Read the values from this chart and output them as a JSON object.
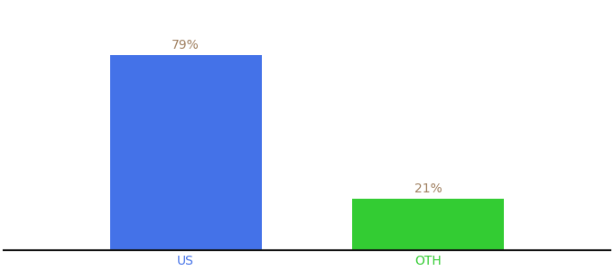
{
  "categories": [
    "US",
    "OTH"
  ],
  "values": [
    79,
    21
  ],
  "bar_colors": [
    "#4472e8",
    "#33cc33"
  ],
  "label_texts": [
    "79%",
    "21%"
  ],
  "label_color": "#a08060",
  "ylim": [
    0,
    100
  ],
  "background_color": "#ffffff",
  "label_fontsize": 10,
  "tick_fontsize": 10,
  "bar_positions": [
    0.3,
    0.7
  ],
  "bar_width": 0.25
}
